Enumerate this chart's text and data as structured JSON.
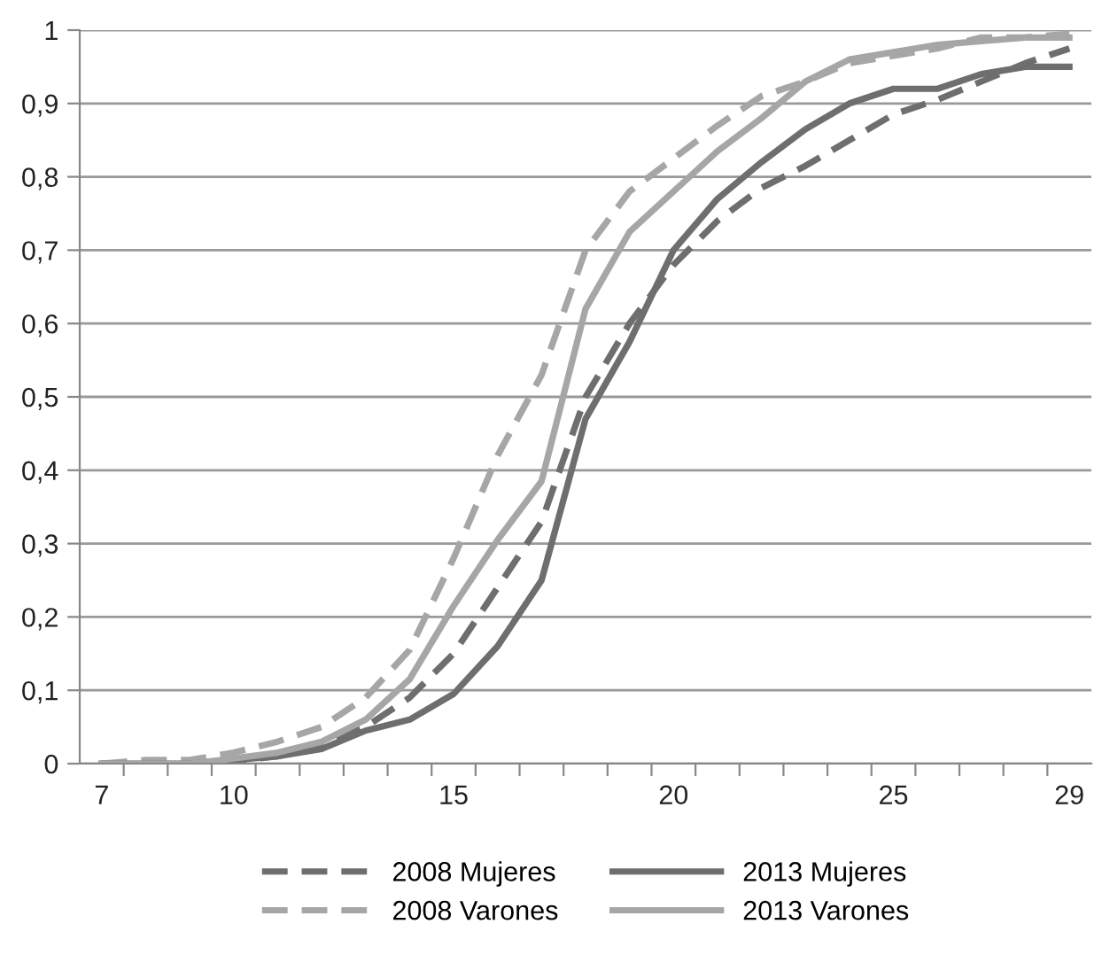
{
  "chart_data": {
    "type": "line",
    "x": [
      7,
      8,
      9,
      10,
      11,
      12,
      13,
      14,
      15,
      16,
      17,
      18,
      19,
      20,
      21,
      22,
      23,
      24,
      25,
      26,
      27,
      28,
      29
    ],
    "series": [
      {
        "name": "2008 Mujeres",
        "color": "#6e6e6e",
        "line_style": "dashed",
        "values": [
          0,
          0,
          0,
          0.003,
          0.01,
          0.025,
          0.05,
          0.09,
          0.15,
          0.24,
          0.33,
          0.5,
          0.6,
          0.68,
          0.74,
          0.785,
          0.815,
          0.85,
          0.885,
          0.905,
          0.93,
          0.955,
          0.975
        ]
      },
      {
        "name": "2008 Varones",
        "color": "#a6a6a6",
        "line_style": "dashed",
        "values": [
          0,
          0.005,
          0.005,
          0.015,
          0.03,
          0.05,
          0.09,
          0.155,
          0.28,
          0.42,
          0.53,
          0.7,
          0.78,
          0.825,
          0.87,
          0.91,
          0.93,
          0.955,
          0.965,
          0.975,
          0.99,
          0.99,
          0.995
        ]
      },
      {
        "name": "2013 Mujeres",
        "color": "#6e6e6e",
        "line_style": "solid",
        "values": [
          0,
          0,
          0,
          0.005,
          0.01,
          0.02,
          0.045,
          0.06,
          0.095,
          0.16,
          0.25,
          0.47,
          0.575,
          0.7,
          0.77,
          0.82,
          0.865,
          0.9,
          0.92,
          0.92,
          0.94,
          0.95,
          0.95
        ]
      },
      {
        "name": "2013 Varones",
        "color": "#a6a6a6",
        "line_style": "solid",
        "values": [
          0,
          0,
          0,
          0.007,
          0.015,
          0.03,
          0.06,
          0.115,
          0.215,
          0.305,
          0.385,
          0.62,
          0.725,
          0.78,
          0.835,
          0.88,
          0.93,
          0.96,
          0.97,
          0.98,
          0.985,
          0.99,
          0.99
        ]
      }
    ],
    "xlim": [
      6.5,
      29.5
    ],
    "xticks": [
      7,
      10,
      15,
      20,
      25,
      29,
      {
        "value": 7.5,
        "label": null
      },
      {
        "value": 8.5,
        "label": null
      },
      {
        "value": 9.5,
        "label": null
      },
      {
        "value": 10.5,
        "label": null
      },
      {
        "value": 11.5,
        "label": null
      },
      {
        "value": 12.5,
        "label": null
      },
      {
        "value": 13.5,
        "label": null
      },
      {
        "value": 14.5,
        "label": null
      },
      {
        "value": 15.5,
        "label": null
      },
      {
        "value": 16.5,
        "label": null
      },
      {
        "value": 17.5,
        "label": null
      },
      {
        "value": 18.5,
        "label": null
      },
      {
        "value": 19.5,
        "label": null
      },
      {
        "value": 20.5,
        "label": null
      },
      {
        "value": 21.5,
        "label": null
      },
      {
        "value": 22.5,
        "label": null
      },
      {
        "value": 23.5,
        "label": null
      },
      {
        "value": 24.5,
        "label": null
      },
      {
        "value": 25.5,
        "label": null
      },
      {
        "value": 26.5,
        "label": null
      },
      {
        "value": 27.5,
        "label": null
      },
      {
        "value": 28.5,
        "label": null
      }
    ],
    "ylim": [
      0,
      1
    ],
    "yticks": [
      0,
      {
        "value": 0.1,
        "label": "0,1"
      },
      {
        "value": 0.2,
        "label": "0,2"
      },
      {
        "value": 0.3,
        "label": "0,3"
      },
      {
        "value": 0.4,
        "label": "0,4"
      },
      {
        "value": 0.5,
        "label": "0,5"
      },
      {
        "value": 0.6,
        "label": "0,6"
      },
      {
        "value": 0.7,
        "label": "0,7"
      },
      {
        "value": 0.8,
        "label": "0,8"
      },
      {
        "value": 0.9,
        "label": "0,9"
      },
      1
    ],
    "grid": "y",
    "legend": "bottom",
    "marker": "none"
  }
}
